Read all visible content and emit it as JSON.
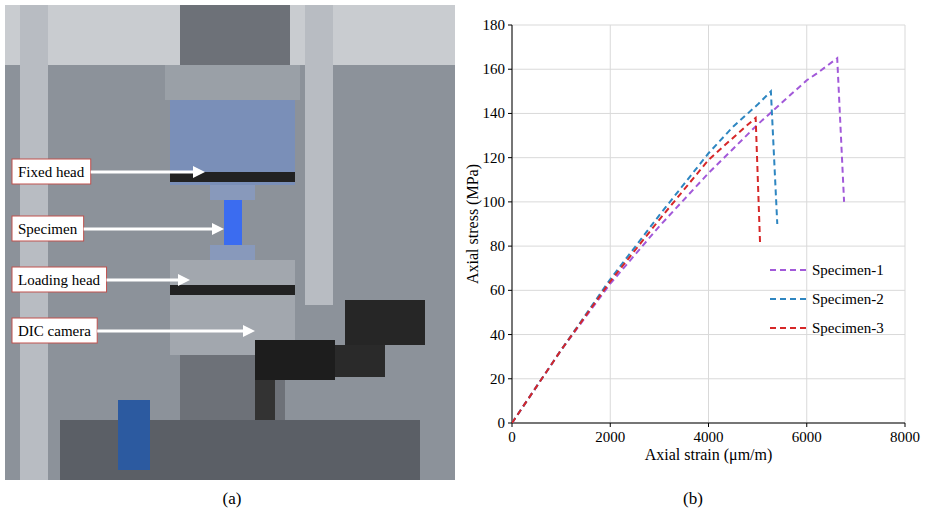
{
  "photo": {
    "caption": "(a)",
    "callouts": [
      "Fixed head",
      "Specimen",
      "Loading head",
      "DIC camera"
    ]
  },
  "chart_data": {
    "type": "line",
    "caption": "(b)",
    "x_label": "Axial strain (μm/m)",
    "y_label": "Axial stress (MPa)",
    "xlim": [
      0,
      8000
    ],
    "xticks": [
      0,
      2000,
      4000,
      6000,
      8000
    ],
    "ylim": [
      0,
      180
    ],
    "yticks": [
      0,
      20,
      40,
      60,
      80,
      100,
      120,
      140,
      160,
      180
    ],
    "grid": true,
    "legend": "right",
    "line_style": "dashed",
    "series": [
      {
        "name": "Specimen-1",
        "color": "#a259d9",
        "x": [
          0,
          1000,
          2000,
          3000,
          4000,
          5000,
          6000,
          6200,
          6620,
          6760
        ],
        "values": [
          0,
          33,
          63,
          89,
          113,
          135,
          155,
          158,
          165,
          100
        ]
      },
      {
        "name": "Specimen-2",
        "color": "#2e86c1",
        "x": [
          0,
          1000,
          2000,
          3000,
          4000,
          4500,
          5000,
          5270,
          5400
        ],
        "values": [
          0,
          33,
          65,
          94,
          122,
          134,
          144,
          150,
          90
        ]
      },
      {
        "name": "Specimen-3",
        "color": "#d62728",
        "x": [
          0,
          1000,
          2000,
          3000,
          4000,
          4700,
          4960,
          5050
        ],
        "values": [
          0,
          33,
          64,
          92,
          119,
          133,
          138,
          81
        ]
      }
    ]
  }
}
